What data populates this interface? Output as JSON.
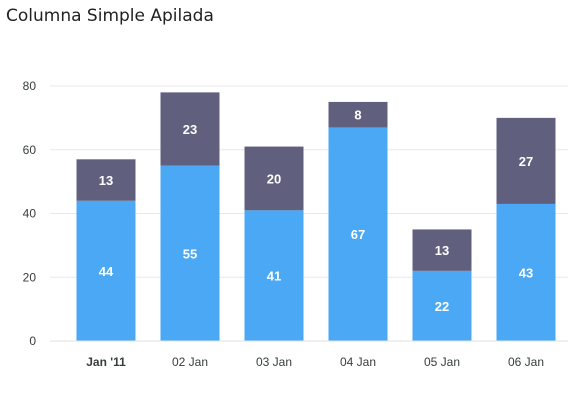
{
  "chart_data": {
    "type": "bar",
    "stacked": true,
    "title": "Columna Simple Apilada",
    "categories": [
      "Jan '11",
      "02 Jan",
      "03 Jan",
      "04 Jan",
      "05 Jan",
      "06 Jan"
    ],
    "series": [
      {
        "values": [
          44,
          55,
          41,
          67,
          22,
          43
        ],
        "color": "#4aa8f5"
      },
      {
        "values": [
          13,
          23,
          20,
          8,
          13,
          27
        ],
        "color": "#60607e"
      }
    ],
    "ylim": [
      0,
      80
    ],
    "yticks": [
      0,
      20,
      40,
      60,
      80
    ],
    "grid": true,
    "highlight_category": "Jan '11"
  }
}
